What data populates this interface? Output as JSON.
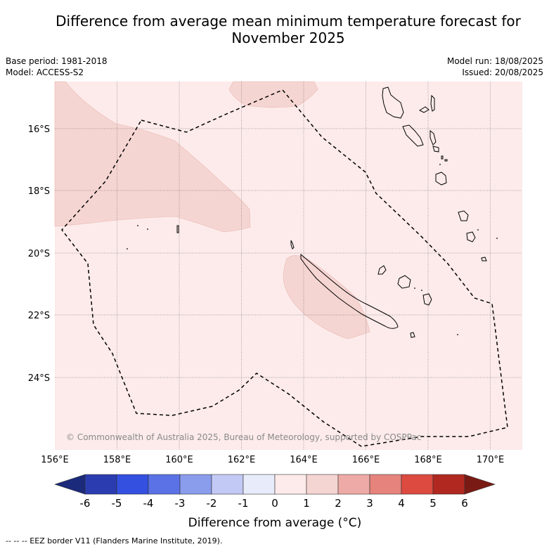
{
  "title_line1": "Difference from average mean minimum temperature forecast for",
  "title_line2": "November 2025",
  "base_period": "Base period: 1981-2018",
  "model": "Model: ACCESS-S2",
  "model_run": "Model run: 18/08/2025",
  "issued": "Issued: 20/08/2025",
  "copyright": "© Commonwealth of Australia 2025, Bureau of Meteorology, supported by COSPPac",
  "footnote": "--  --  -- EEZ border V11 (Flanders Marine Institute, 2019).",
  "colorbar": {
    "title": "Difference from average (°C)",
    "labels": [
      "-6",
      "-5",
      "-4",
      "-3",
      "-2",
      "-1",
      "0",
      "1",
      "2",
      "3",
      "4",
      "5",
      "6"
    ],
    "colors": [
      "#1b2a7a",
      "#2a3cb0",
      "#3350e0",
      "#5a72e6",
      "#8a9cec",
      "#c2c9f4",
      "#e8ecfa",
      "#fcebea",
      "#f5d5d2",
      "#eeaaa6",
      "#e6837c",
      "#dc4a40",
      "#b0281f",
      "#7a1a14"
    ]
  },
  "map": {
    "lon_labels": [
      "156°E",
      "158°E",
      "160°E",
      "162°E",
      "164°E",
      "166°E",
      "168°E",
      "170°E"
    ],
    "lat_labels": [
      "16°S",
      "18°S",
      "20°S",
      "22°S",
      "24°S"
    ],
    "background_fill": "#fcebea",
    "anomaly_fill": "#f5d5d2"
  }
}
